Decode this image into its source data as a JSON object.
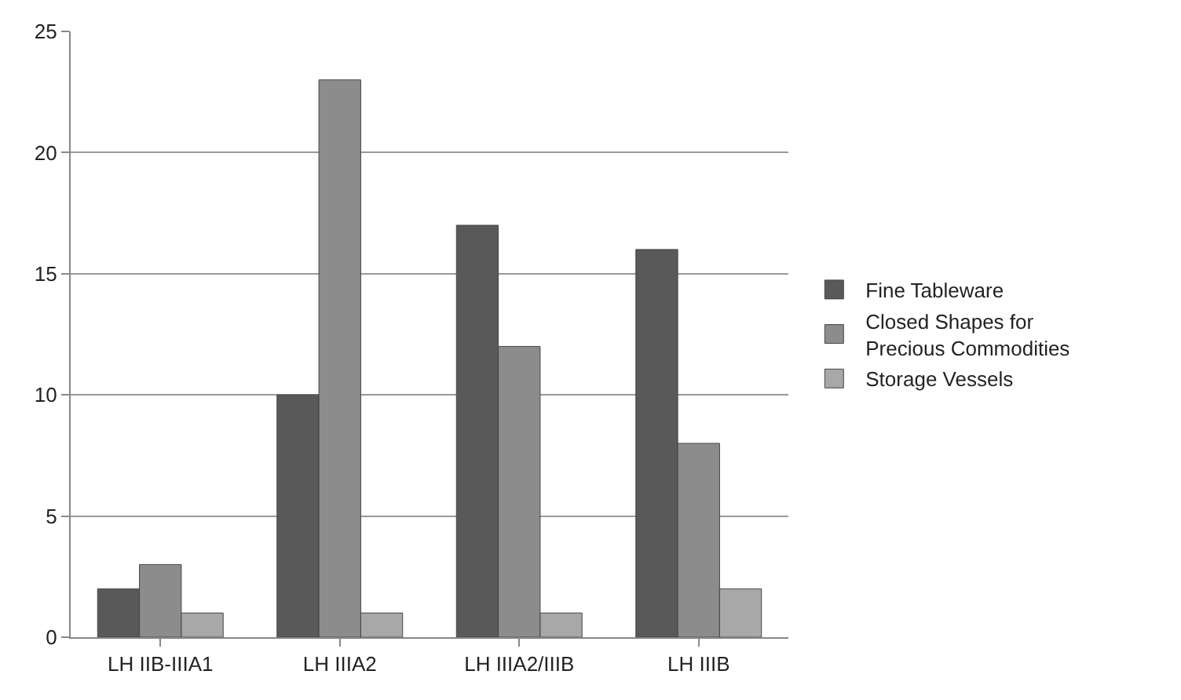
{
  "chart_data": {
    "type": "bar",
    "categories": [
      "LH IIB-IIIA1",
      "LH IIIA2",
      "LH IIIA2/IIIB",
      "LH IIIB"
    ],
    "series": [
      {
        "name": "Fine Tableware",
        "color": "#595959",
        "values": [
          2,
          10,
          17,
          16
        ]
      },
      {
        "name": "Closed Shapes for Precious Commodities",
        "color": "#8c8c8c",
        "values": [
          3,
          23,
          12,
          8
        ]
      },
      {
        "name": "Storage Vessels",
        "color": "#a8a8a8",
        "values": [
          1,
          1,
          1,
          2
        ]
      }
    ],
    "ylim": [
      0,
      25
    ],
    "yticks": [
      0,
      5,
      10,
      15,
      20,
      25
    ],
    "grid": "y",
    "legend": "right"
  }
}
